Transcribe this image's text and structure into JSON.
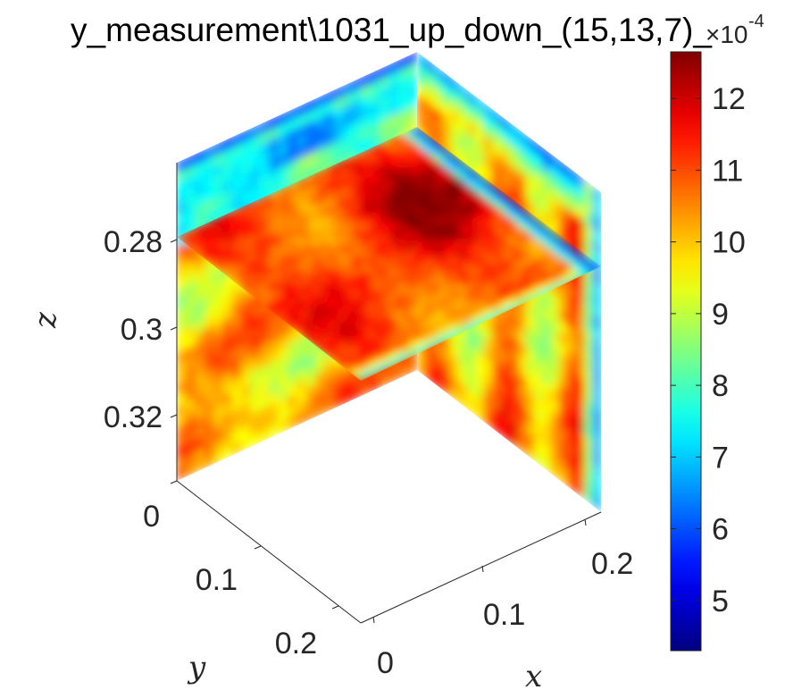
{
  "chart_data": {
    "type": "heatmap",
    "subtype": "3d-slice",
    "title": "y_measurement\\1031_up_down_(15,13,7)_",
    "xlabel": "x",
    "ylabel": "y",
    "zlabel": "z",
    "x_ticks": [
      "0",
      "0.1",
      "0.2"
    ],
    "y_ticks": [
      "0",
      "0.1",
      "0.2"
    ],
    "z_ticks": [
      "0.28",
      "0.3",
      "0.32"
    ],
    "xlim": [
      0,
      0.24
    ],
    "ylim": [
      0,
      0.24
    ],
    "zlim": [
      0.265,
      0.335
    ],
    "z_direction": "reversed",
    "colormap": "jet",
    "colorbar": {
      "ticks": [
        "5",
        "6",
        "7",
        "8",
        "9",
        "10",
        "11",
        "12"
      ],
      "tick_values": [
        5,
        6,
        7,
        8,
        9,
        10,
        11,
        12
      ],
      "range": [
        4.3,
        12.65
      ],
      "exponent": "×10^-4",
      "multiplier_text": "×10",
      "exponent_text": "-4"
    },
    "slices": [
      {
        "plane": "z",
        "position": 0.285,
        "typical_value": 11,
        "min_value": 5,
        "max_value": 12.6
      },
      {
        "plane": "x",
        "position": 0,
        "typical_value": 10.5,
        "min_value": 5,
        "max_value": 11
      },
      {
        "plane": "y",
        "position": 0.24,
        "typical_value": 10.5,
        "min_value": 6,
        "max_value": 11.5
      }
    ],
    "grid": false,
    "box": false
  }
}
